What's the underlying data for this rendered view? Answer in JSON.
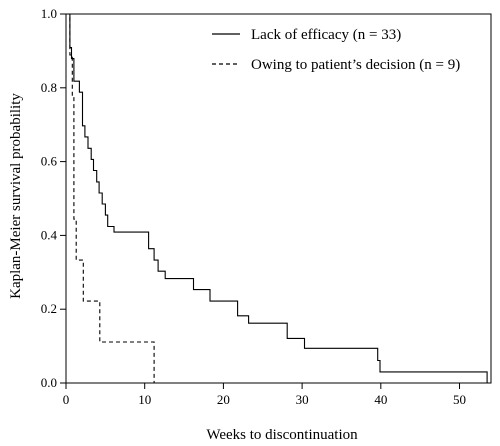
{
  "chart_data": {
    "type": "line",
    "subtype": "step",
    "title": "",
    "xlabel": "Weeks to discontinuation",
    "ylabel": "Kaplan-Meier survival probability",
    "xlim": [
      0,
      54
    ],
    "ylim": [
      0,
      1.0
    ],
    "x_ticks": [
      0,
      10,
      20,
      30,
      40,
      50
    ],
    "y_ticks": [
      "0.0",
      "0.2",
      "0.4",
      "0.6",
      "0.8",
      "1.0"
    ],
    "grid": false,
    "legend_position": "top-right",
    "series": [
      {
        "name": "Lack of efficacy (n = 33)",
        "line_style": "solid",
        "color": "#000000",
        "x": [
          0,
          0.5,
          0.7,
          1.0,
          1.7,
          2.1,
          2.4,
          2.8,
          3.2,
          3.5,
          3.9,
          4.2,
          4.6,
          5.0,
          5.3,
          5.7,
          6.1,
          10.5,
          11.2,
          11.7,
          12.6,
          16.2,
          18.3,
          21.8,
          23.2,
          24.4,
          28.1,
          30.3,
          39.6,
          39.9,
          53.5
        ],
        "y": [
          1.0,
          0.909,
          0.879,
          0.818,
          0.788,
          0.697,
          0.667,
          0.636,
          0.606,
          0.576,
          0.545,
          0.515,
          0.485,
          0.455,
          0.424,
          0.424,
          0.409,
          0.364,
          0.333,
          0.303,
          0.283,
          0.253,
          0.222,
          0.182,
          0.162,
          0.162,
          0.121,
          0.094,
          0.061,
          0.03,
          0.0
        ]
      },
      {
        "name": "Owing to patient’s decision (n = 9)",
        "line_style": "dashed",
        "color": "#000000",
        "x": [
          0,
          0.5,
          0.8,
          1.0,
          1.3,
          2.2,
          4.3,
          10.9,
          11.2
        ],
        "y": [
          1.0,
          0.889,
          0.778,
          0.444,
          0.333,
          0.222,
          0.111,
          0.111,
          0.0
        ]
      }
    ]
  }
}
